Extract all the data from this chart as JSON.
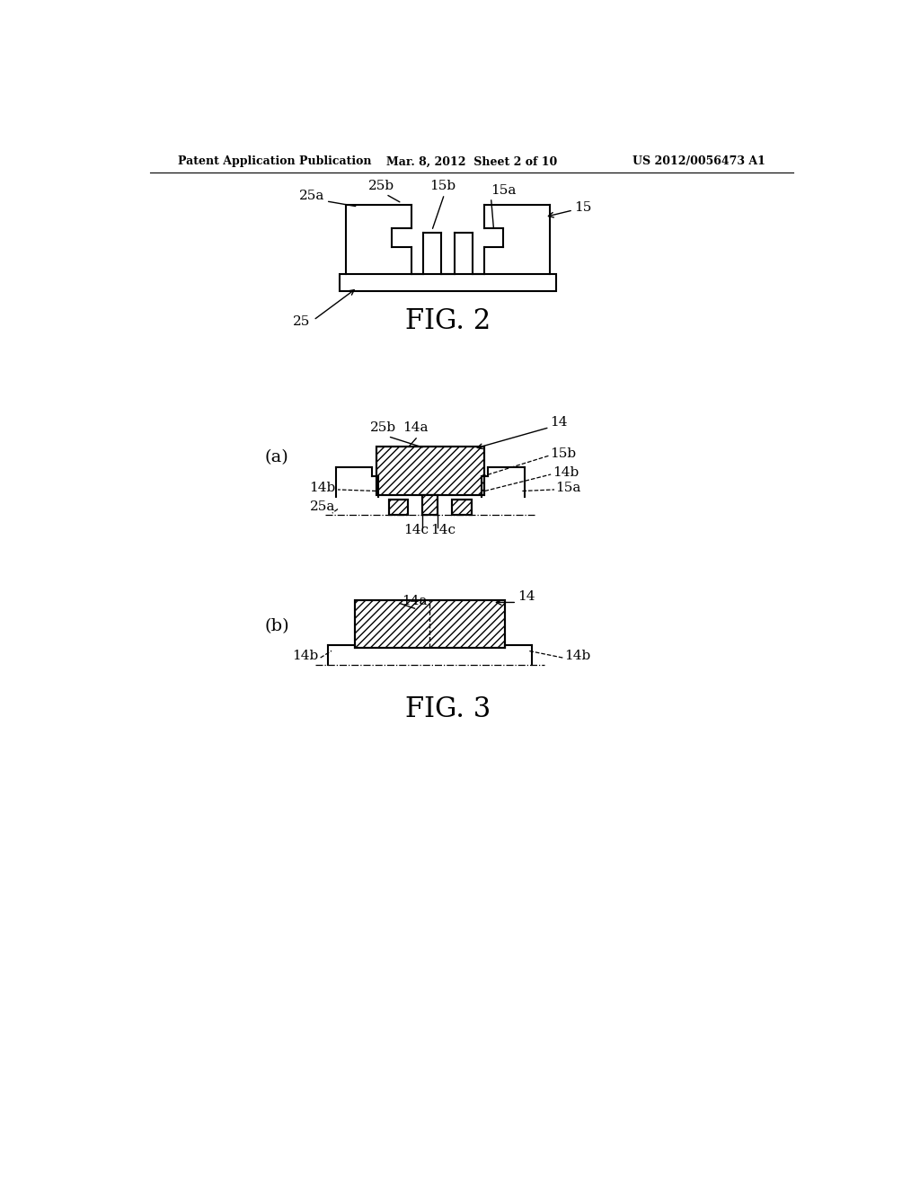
{
  "bg_color": "#ffffff",
  "line_color": "#000000",
  "header_left": "Patent Application Publication",
  "header_mid": "Mar. 8, 2012  Sheet 2 of 10",
  "header_right": "US 2012/0056473 A1",
  "fig2_label": "FIG. 2",
  "fig3_label": "FIG. 3",
  "fig_a_label": "(a)",
  "fig_b_label": "(b)"
}
